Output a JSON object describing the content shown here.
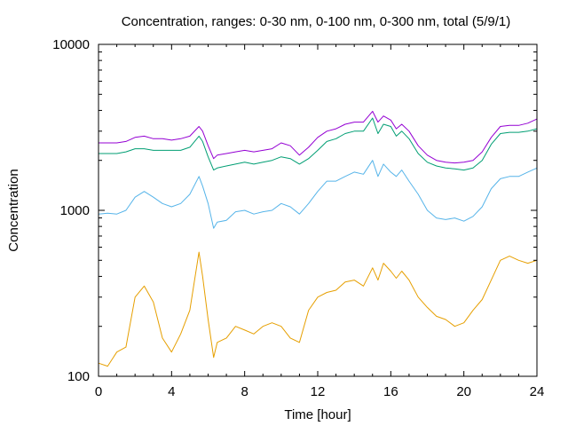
{
  "chart_data": {
    "type": "line",
    "title": "Concentration, ranges: 0-30 nm, 0-100 nm, 0-300 nm, total (5/9/1)",
    "xlabel": "Time [hour]",
    "ylabel": "Concentration",
    "xlim": [
      0,
      24
    ],
    "ylim": [
      100,
      10000
    ],
    "yscale": "log",
    "grid": false,
    "x_ticks": [
      0,
      4,
      8,
      12,
      16,
      20,
      24
    ],
    "x_tick_labels": [
      "0",
      "4",
      "8",
      "12",
      "16",
      "20",
      "24"
    ],
    "y_ticks": [
      100,
      1000,
      10000
    ],
    "y_tick_labels": [
      "100",
      "1000",
      "10000"
    ],
    "x": [
      0,
      0.5,
      1,
      1.5,
      2,
      2.5,
      3,
      3.5,
      4,
      4.5,
      5,
      5.5,
      5.7,
      6,
      6.3,
      6.5,
      7,
      7.5,
      8,
      8.5,
      9,
      9.5,
      10,
      10.5,
      11,
      11.5,
      12,
      12.5,
      13,
      13.5,
      14,
      14.5,
      15,
      15.3,
      15.6,
      16,
      16.3,
      16.6,
      17,
      17.5,
      18,
      18.5,
      19,
      19.5,
      20,
      20.5,
      21,
      21.5,
      22,
      22.5,
      23,
      23.5,
      24
    ],
    "series": [
      {
        "color": "#e69f00",
        "values": [
          120,
          115,
          140,
          150,
          300,
          350,
          280,
          170,
          140,
          180,
          250,
          560,
          400,
          220,
          130,
          160,
          170,
          200,
          190,
          180,
          200,
          210,
          200,
          170,
          160,
          250,
          300,
          320,
          330,
          370,
          380,
          350,
          450,
          380,
          480,
          430,
          390,
          430,
          380,
          300,
          260,
          230,
          220,
          200,
          210,
          250,
          290,
          380,
          500,
          530,
          500,
          480,
          500
        ]
      },
      {
        "color": "#56b4e9",
        "values": [
          950,
          960,
          950,
          1000,
          1200,
          1300,
          1200,
          1100,
          1050,
          1100,
          1250,
          1600,
          1400,
          1100,
          780,
          850,
          870,
          980,
          1000,
          950,
          980,
          1000,
          1100,
          1050,
          950,
          1100,
          1300,
          1500,
          1500,
          1600,
          1700,
          1650,
          2000,
          1600,
          1900,
          1700,
          1600,
          1750,
          1500,
          1250,
          1000,
          900,
          880,
          900,
          860,
          920,
          1050,
          1350,
          1550,
          1600,
          1600,
          1700,
          1800
        ]
      },
      {
        "color": "#009e73",
        "values": [
          2200,
          2200,
          2200,
          2250,
          2350,
          2350,
          2300,
          2300,
          2300,
          2300,
          2400,
          2800,
          2600,
          2100,
          1750,
          1800,
          1850,
          1900,
          1950,
          1900,
          1950,
          2000,
          2100,
          2050,
          1900,
          2050,
          2300,
          2600,
          2700,
          2900,
          3000,
          3000,
          3600,
          2900,
          3300,
          3200,
          2800,
          3000,
          2700,
          2200,
          1950,
          1850,
          1800,
          1780,
          1750,
          1800,
          2000,
          2500,
          2900,
          2950,
          2950,
          3000,
          3100
        ]
      },
      {
        "color": "#9400d3",
        "values": [
          2550,
          2550,
          2550,
          2600,
          2750,
          2800,
          2700,
          2700,
          2650,
          2700,
          2800,
          3200,
          3000,
          2450,
          2050,
          2150,
          2200,
          2250,
          2300,
          2250,
          2300,
          2350,
          2550,
          2450,
          2150,
          2400,
          2750,
          3000,
          3100,
          3300,
          3400,
          3400,
          3950,
          3400,
          3700,
          3500,
          3100,
          3300,
          3000,
          2450,
          2150,
          2000,
          1950,
          1930,
          1950,
          2000,
          2250,
          2750,
          3200,
          3250,
          3250,
          3350,
          3550
        ]
      }
    ]
  }
}
